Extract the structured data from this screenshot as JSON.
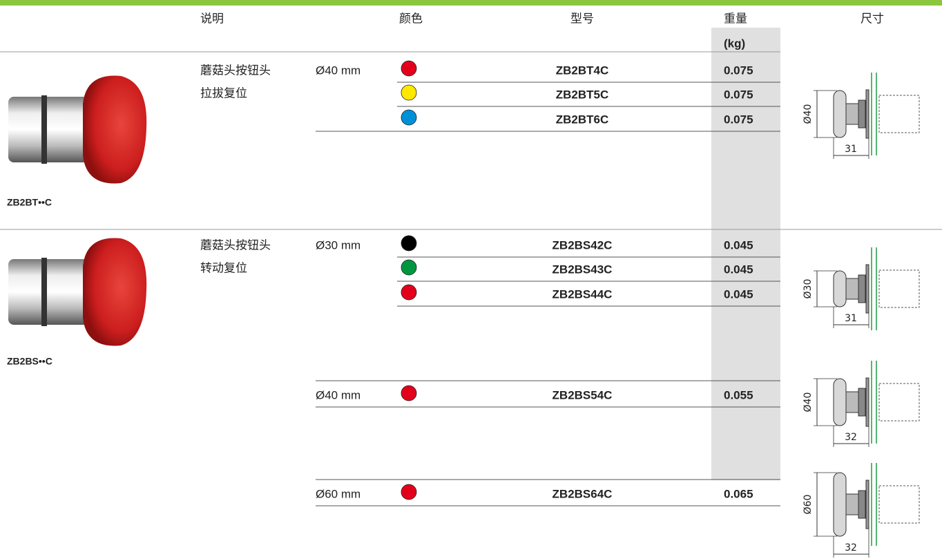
{
  "columns": {
    "description": "说明",
    "color": "颜色",
    "model": "型号",
    "weight": "重量",
    "weight_unit": "(kg)",
    "dimensions": "尺寸"
  },
  "groups": [
    {
      "label": "ZB2BT••C",
      "description": [
        "蘑菇头按钮头",
        "拉拔复位"
      ],
      "variants": [
        {
          "diameter": "Ø40 mm",
          "items": [
            {
              "color": "#e3001b",
              "model": "ZB2BT4C",
              "weight": "0.075"
            },
            {
              "color": "#ffe800",
              "model": "ZB2BT5C",
              "weight": "0.075"
            },
            {
              "color": "#0090d8",
              "model": "ZB2BT6C",
              "weight": "0.075"
            }
          ],
          "drawing": {
            "diameter": "Ø40",
            "length": "31"
          }
        }
      ]
    },
    {
      "label": "ZB2BS••C",
      "description": [
        "蘑菇头按钮头",
        "转动复位"
      ],
      "variants": [
        {
          "diameter": "Ø30 mm",
          "items": [
            {
              "color": "#000000",
              "model": "ZB2BS42C",
              "weight": "0.045"
            },
            {
              "color": "#00963f",
              "model": "ZB2BS43C",
              "weight": "0.045"
            },
            {
              "color": "#e3001b",
              "model": "ZB2BS44C",
              "weight": "0.045"
            }
          ],
          "drawing": {
            "diameter": "Ø30",
            "length": "31"
          }
        },
        {
          "diameter": "Ø40 mm",
          "items": [
            {
              "color": "#e3001b",
              "model": "ZB2BS54C",
              "weight": "0.055"
            }
          ],
          "drawing": {
            "diameter": "Ø40",
            "length": "32"
          }
        },
        {
          "diameter": "Ø60 mm",
          "items": [
            {
              "color": "#e3001b",
              "model": "ZB2BS64C",
              "weight": "0.065"
            }
          ],
          "drawing": {
            "diameter": "Ø60",
            "length": "32"
          }
        }
      ]
    }
  ]
}
